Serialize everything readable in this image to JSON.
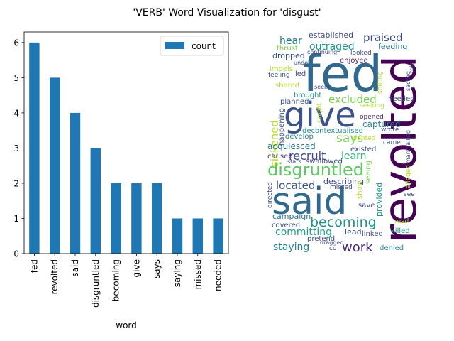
{
  "figure": {
    "title": "'VERB' Word Visualization for 'disgust'"
  },
  "chart_data": [
    {
      "type": "bar",
      "categories": [
        "fed",
        "revolted",
        "said",
        "disgruntled",
        "becoming",
        "give",
        "says",
        "saying",
        "missed",
        "needed"
      ],
      "series": [
        {
          "name": "count",
          "values": [
            6,
            5,
            4,
            3,
            2,
            2,
            2,
            1,
            1,
            1
          ]
        }
      ],
      "xlabel": "word",
      "ylabel": "",
      "ylim": [
        0,
        6.3
      ],
      "yticks": [
        0,
        1,
        2,
        3,
        4,
        5,
        6
      ],
      "grid": false,
      "legend": "top-right",
      "color": "#1f77b4"
    },
    {
      "type": "wordcloud",
      "words": [
        {
          "text": "fed",
          "color": "#31688e"
        },
        {
          "text": "revolted",
          "color": "#440154"
        },
        {
          "text": "give",
          "color": "#3b528b"
        },
        {
          "text": "said",
          "color": "#31688e"
        },
        {
          "text": "disgruntled",
          "color": "#5ec962"
        },
        {
          "text": "becoming",
          "color": "#21918c"
        },
        {
          "text": "work",
          "color": "#482878"
        },
        {
          "text": "recruit",
          "color": "#3e4989"
        },
        {
          "text": "praised",
          "color": "#3e4989"
        },
        {
          "text": "excluded",
          "color": "#7ad151"
        },
        {
          "text": "says",
          "color": "#7ad151"
        },
        {
          "text": "located",
          "color": "#3b528b"
        },
        {
          "text": "outraged",
          "color": "#21918c"
        },
        {
          "text": "sickened",
          "color": "#b5de2b"
        },
        {
          "text": "committing",
          "color": "#1f9e89"
        },
        {
          "text": "staying",
          "color": "#26828e"
        },
        {
          "text": "learn",
          "color": "#35b779"
        },
        {
          "text": "hear",
          "color": "#2a788e"
        },
        {
          "text": "captured",
          "color": "#26828e"
        },
        {
          "text": "acquiesced",
          "color": "#2a788e"
        },
        {
          "text": "established",
          "color": "#3e4989"
        },
        {
          "text": "dropped",
          "color": "#3b528b"
        },
        {
          "text": "enjoyed",
          "color": "#472d7b"
        },
        {
          "text": "feeding",
          "color": "#2a788e"
        },
        {
          "text": "thrust",
          "color": "#7ad151"
        },
        {
          "text": "impels",
          "color": "#b5de2b"
        },
        {
          "text": "continuing",
          "color": "#3e4989"
        },
        {
          "text": "looked",
          "color": "#3e4989"
        },
        {
          "text": "undo",
          "color": "#3b528b"
        },
        {
          "text": "feeling",
          "color": "#3b528b"
        },
        {
          "text": "led",
          "color": "#3e4989"
        },
        {
          "text": "shared",
          "color": "#b5de2b"
        },
        {
          "text": "seem",
          "color": "#3e4989"
        },
        {
          "text": "brought",
          "color": "#21918c"
        },
        {
          "text": "planned",
          "color": "#3b528b"
        },
        {
          "text": "needed",
          "color": "#3b528b"
        },
        {
          "text": "seeking",
          "color": "#b5de2b"
        },
        {
          "text": "opened",
          "color": "#482878"
        },
        {
          "text": "wrote",
          "color": "#3e4989"
        },
        {
          "text": "happening",
          "color": "#3b528b"
        },
        {
          "text": "decontextualised",
          "color": "#21918c"
        },
        {
          "text": "develop",
          "color": "#26828e"
        },
        {
          "text": "wanted",
          "color": "#b5de2b"
        },
        {
          "text": "came",
          "color": "#3e4989"
        },
        {
          "text": "existed",
          "color": "#3e4989"
        },
        {
          "text": "caused",
          "color": "#472d7b"
        },
        {
          "text": "stars",
          "color": "#3e4989"
        },
        {
          "text": "swallowed",
          "color": "#3e4989"
        },
        {
          "text": "describing",
          "color": "#3e4989"
        },
        {
          "text": "seeing",
          "color": "#7ad151"
        },
        {
          "text": "missed",
          "color": "#3e4989"
        },
        {
          "text": "show",
          "color": "#b5de2b"
        },
        {
          "text": "save",
          "color": "#3e4989"
        },
        {
          "text": "provided",
          "color": "#21918c"
        },
        {
          "text": "marshalling",
          "color": "#3e4989"
        },
        {
          "text": "alleged",
          "color": "#b5de2b"
        },
        {
          "text": "see",
          "color": "#3e4989"
        },
        {
          "text": "directed",
          "color": "#3e4989"
        },
        {
          "text": "campaign",
          "color": "#2a788e"
        },
        {
          "text": "covered",
          "color": "#3e4989"
        },
        {
          "text": "lead",
          "color": "#3b528b"
        },
        {
          "text": "linked",
          "color": "#3e4989"
        },
        {
          "text": "killed",
          "color": "#21918c"
        },
        {
          "text": "read",
          "color": "#b5de2b"
        },
        {
          "text": "pretend",
          "color": "#3b528b"
        },
        {
          "text": "co",
          "color": "#3e4989"
        },
        {
          "text": "denied",
          "color": "#26828e"
        },
        {
          "text": "sacked",
          "color": "#3e4989"
        },
        {
          "text": "told",
          "color": "#3e4989"
        },
        {
          "text": "shilling",
          "color": "#b5de2b"
        },
        {
          "text": "caught",
          "color": "#b5de2b"
        },
        {
          "text": "dragged",
          "color": "#3e4989"
        }
      ]
    }
  ]
}
